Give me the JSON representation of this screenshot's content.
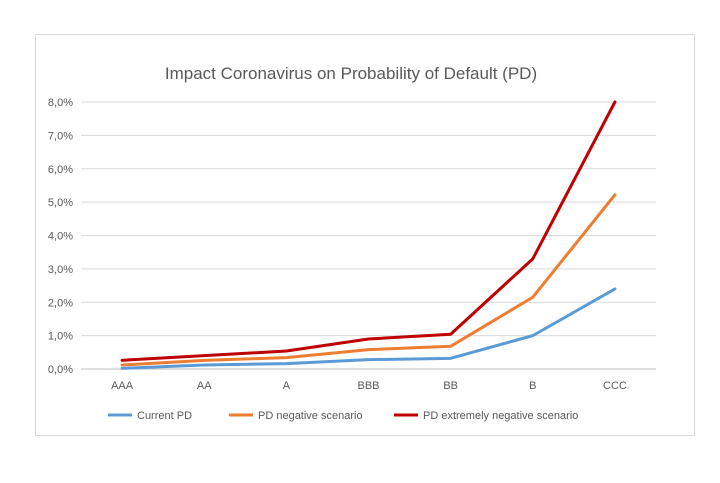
{
  "chart_data": {
    "type": "line",
    "title": "Impact Coronavirus on Probability of Default (PD)",
    "xlabel": "",
    "ylabel": "",
    "categories": [
      "AAA",
      "AA",
      "A",
      "BBB",
      "BB",
      "B",
      "CCC"
    ],
    "ylim": [
      0,
      8
    ],
    "yticks": [
      "0,0%",
      "1,0%",
      "2,0%",
      "3,0%",
      "4,0%",
      "5,0%",
      "6,0%",
      "7,0%",
      "8,0%"
    ],
    "grid": true,
    "legend_position": "bottom",
    "series": [
      {
        "name": "Current PD",
        "color": "#5b9bd5",
        "values": [
          0.02,
          0.12,
          0.16,
          0.28,
          0.32,
          1.0,
          2.4
        ]
      },
      {
        "name": "PD negative scenario",
        "color": "#ed7d31",
        "values": [
          0.12,
          0.26,
          0.34,
          0.58,
          0.68,
          2.15,
          5.22
        ]
      },
      {
        "name": "PD extremely  negative scenario",
        "color": "#c00000",
        "values": [
          0.26,
          0.4,
          0.54,
          0.9,
          1.04,
          3.3,
          8.0
        ]
      }
    ]
  }
}
